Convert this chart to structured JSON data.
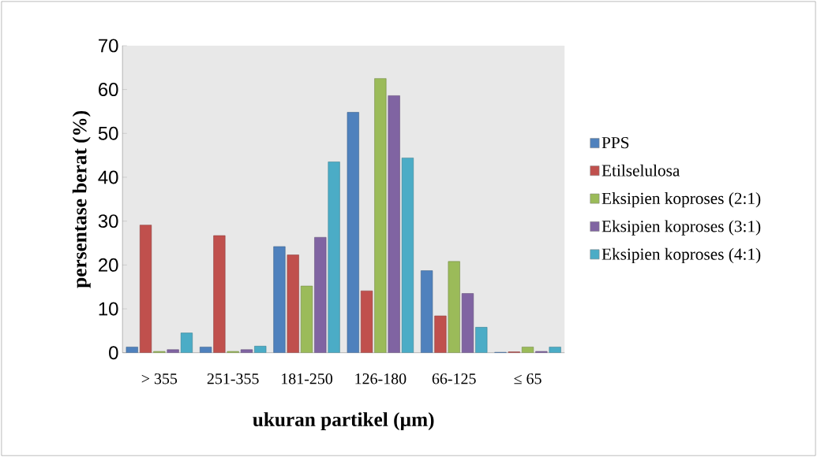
{
  "chart_data": {
    "type": "bar",
    "xlabel": "ukuran partikel (µm)",
    "ylabel": "persentase berat (%)",
    "categories": [
      "> 355",
      "251-355",
      "181-250",
      "126-180",
      "66-125",
      "≤ 65"
    ],
    "series": [
      {
        "name": "PPS",
        "color": "#4f81bd",
        "values": [
          1.3,
          1.3,
          24.2,
          54.8,
          18.7,
          0.1
        ]
      },
      {
        "name": "Etilselulosa",
        "color": "#c0504d",
        "values": [
          29.1,
          26.7,
          22.3,
          14.1,
          8.4,
          0.2
        ]
      },
      {
        "name": "Eksipien koproses (2:1)",
        "color": "#9bbb59",
        "values": [
          0.3,
          0.3,
          15.2,
          62.5,
          20.8,
          1.3
        ]
      },
      {
        "name": "Eksipien koproses (3:1)",
        "color": "#8064a2",
        "values": [
          0.7,
          0.7,
          26.3,
          58.6,
          13.5,
          0.3
        ]
      },
      {
        "name": "Eksipien koproses (4:1)",
        "color": "#4bacc6",
        "values": [
          4.5,
          1.5,
          43.5,
          44.4,
          5.8,
          1.3
        ]
      }
    ],
    "ylim": [
      0,
      70
    ],
    "yticks": [
      0,
      10,
      20,
      30,
      40,
      50,
      60,
      70
    ],
    "legend": "right"
  }
}
